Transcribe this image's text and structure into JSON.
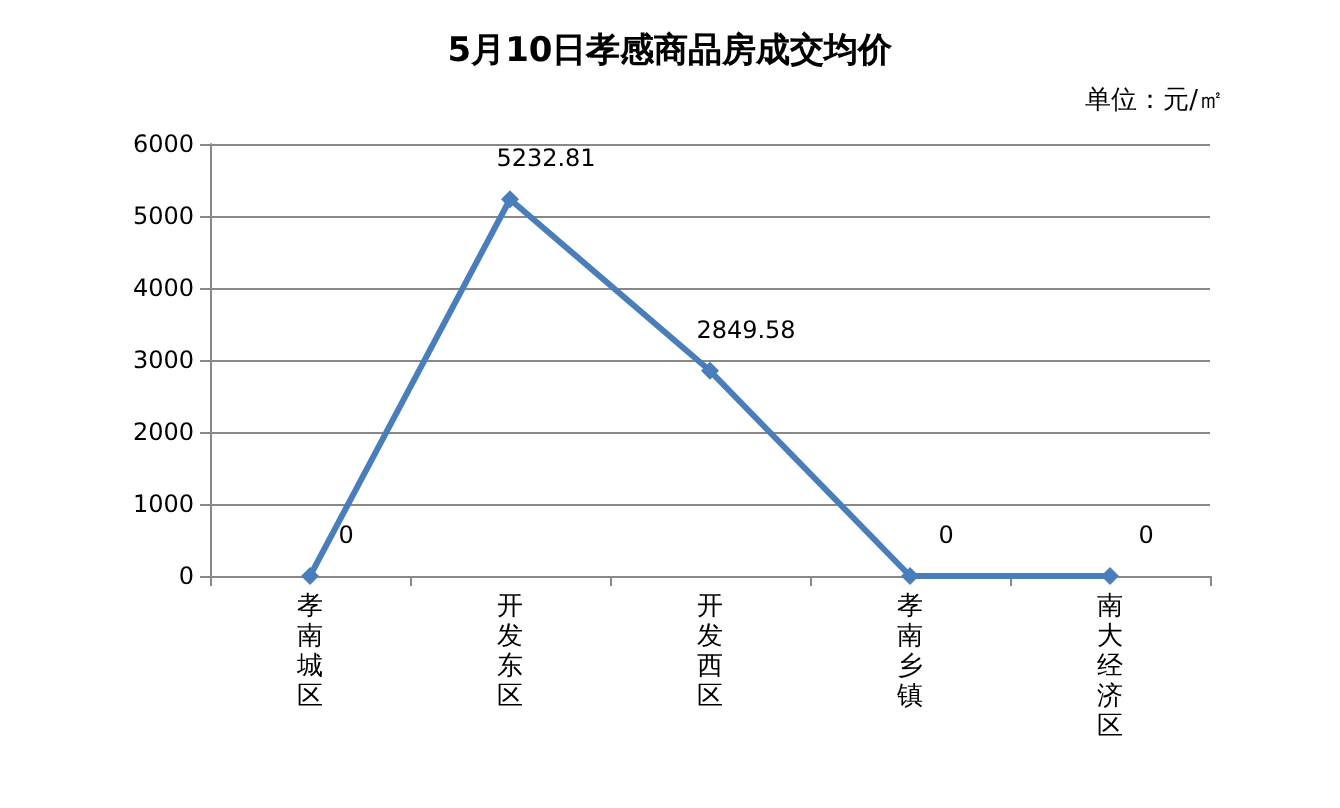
{
  "chart_data": {
    "type": "line",
    "title": "5月10日孝感商品房成交均价",
    "annotations": [
      "单位：元/㎡"
    ],
    "categories": [
      "孝南城区",
      "开发东区",
      "开发西区",
      "孝南乡镇",
      "南大经济区"
    ],
    "series": [
      {
        "color": "#4a7ebb",
        "values": [
          0,
          5232.81,
          2849.58,
          0,
          0
        ]
      }
    ],
    "ylim": [
      0,
      6000
    ],
    "yticks": [
      0,
      1000,
      2000,
      3000,
      4000,
      5000,
      6000
    ],
    "grid": "y",
    "marker": "diamond",
    "line_style": "solid",
    "data_labels": true
  }
}
